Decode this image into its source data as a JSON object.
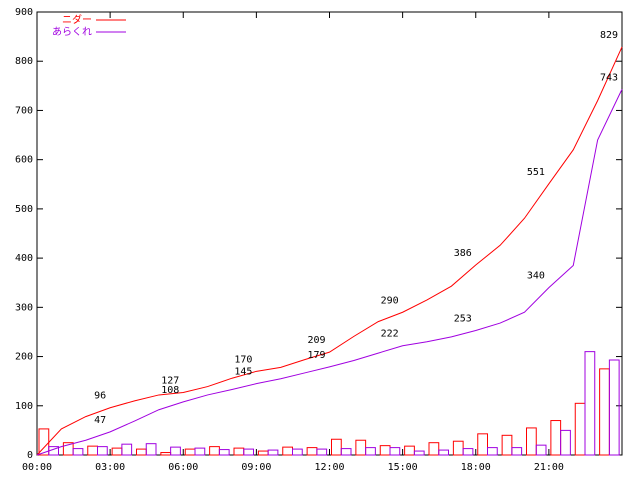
{
  "chart_data": {
    "type": "combo",
    "x": [
      0,
      1,
      2,
      3,
      4,
      5,
      6,
      7,
      8,
      9,
      10,
      11,
      12,
      13,
      14,
      15,
      16,
      17,
      18,
      19,
      20,
      21,
      22,
      23,
      24
    ],
    "series": [
      {
        "name": "ニダー",
        "color": "#ff0000",
        "values": [
          0,
          53,
          78,
          96,
          110,
          122,
          127,
          139,
          156,
          170,
          178,
          194,
          209,
          241,
          271,
          290,
          315,
          343,
          386,
          426,
          481,
          551,
          620,
          720,
          829
        ],
        "labels": [
          {
            "x": 3,
            "value": 96
          },
          {
            "x": 6,
            "value": 127
          },
          {
            "x": 9,
            "value": 170
          },
          {
            "x": 12,
            "value": 209
          },
          {
            "x": 15,
            "value": 290
          },
          {
            "x": 18,
            "value": 386
          },
          {
            "x": 21,
            "value": 551
          },
          {
            "x": 24,
            "value": 829
          }
        ]
      },
      {
        "name": "あらくれ",
        "color": "#a000e0",
        "values": [
          0,
          17,
          30,
          47,
          69,
          92,
          108,
          122,
          133,
          145,
          155,
          167,
          179,
          192,
          207,
          222,
          230,
          240,
          253,
          268,
          290,
          340,
          385,
          640,
          743
        ],
        "labels": [
          {
            "x": 3,
            "value": 47
          },
          {
            "x": 6,
            "value": 108
          },
          {
            "x": 9,
            "value": 145
          },
          {
            "x": 12,
            "value": 179
          },
          {
            "x": 15,
            "value": 222
          },
          {
            "x": 18,
            "value": 253
          },
          {
            "x": 21,
            "value": 340
          },
          {
            "x": 24,
            "value": 743
          }
        ]
      }
    ],
    "bar_x": [
      0,
      1,
      2,
      3,
      4,
      5,
      6,
      7,
      8,
      9,
      10,
      11,
      12,
      13,
      14,
      15,
      16,
      17,
      18,
      19,
      20,
      21,
      22,
      23
    ],
    "bars": [
      {
        "color": "#ff0000",
        "values": [
          53,
          25,
          18,
          14,
          12,
          5,
          12,
          17,
          14,
          8,
          16,
          15,
          32,
          30,
          19,
          18,
          25,
          28,
          43,
          40,
          55,
          70,
          105,
          175
        ]
      },
      {
        "color": "#a000e0",
        "values": [
          17,
          13,
          17,
          22,
          23,
          16,
          14,
          11,
          12,
          10,
          12,
          12,
          13,
          15,
          15,
          8,
          10,
          13,
          15,
          15,
          20,
          50,
          210,
          193
        ]
      }
    ],
    "xlim": [
      0,
      24
    ],
    "xticks": [
      {
        "value": 0,
        "label": "00:00"
      },
      {
        "value": 3,
        "label": "03:00"
      },
      {
        "value": 6,
        "label": "06:00"
      },
      {
        "value": 9,
        "label": "09:00"
      },
      {
        "value": 12,
        "label": "12:00"
      },
      {
        "value": 15,
        "label": "15:00"
      },
      {
        "value": 18,
        "label": "18:00"
      },
      {
        "value": 21,
        "label": "21:00"
      }
    ],
    "ylim": [
      0,
      900
    ],
    "yticks": [
      0,
      100,
      200,
      300,
      400,
      500,
      600,
      700,
      800,
      900
    ]
  }
}
